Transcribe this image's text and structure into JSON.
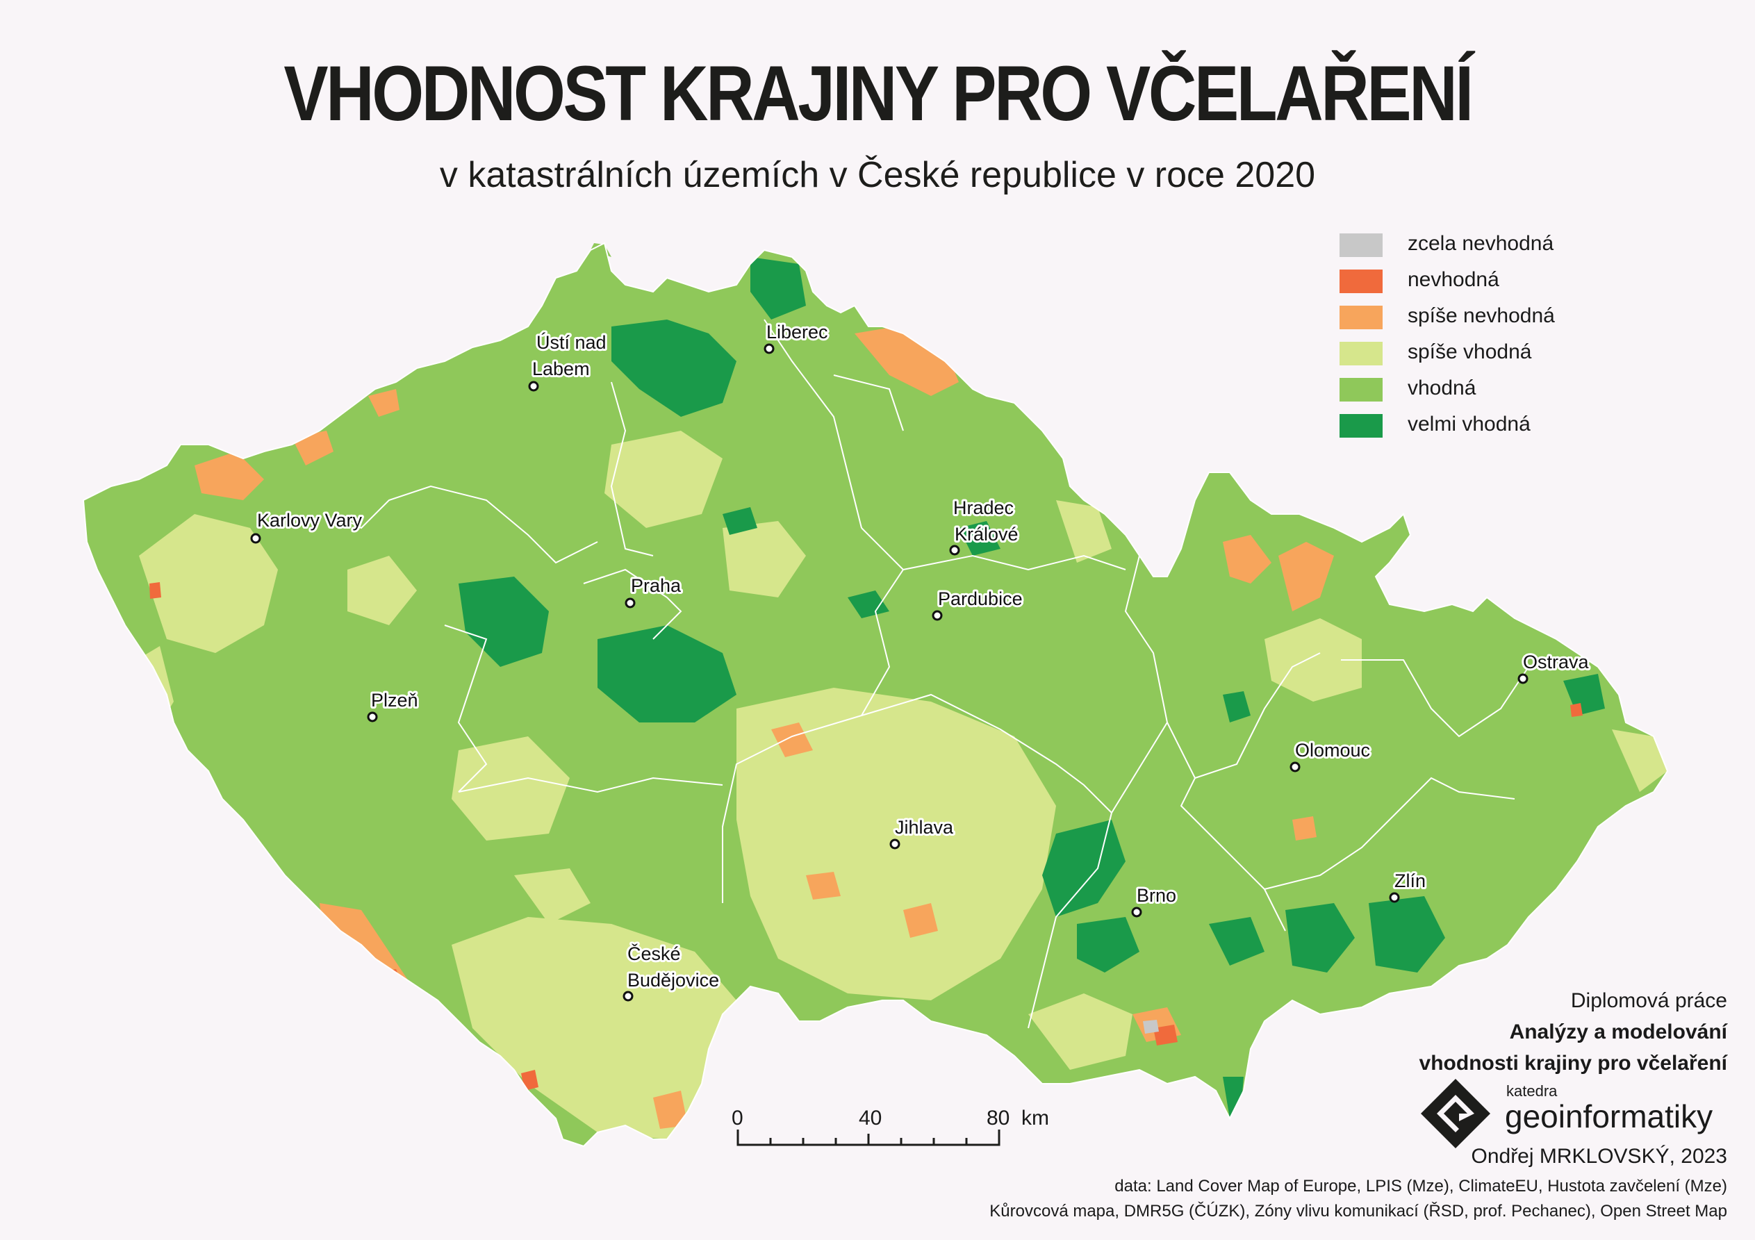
{
  "title": "VHODNOST KRAJINY PRO VČELAŘENÍ",
  "subtitle": "v katastrálních územích v České republice v roce 2020",
  "colors": {
    "background": "#f9f5f8",
    "zcela_nevhodna": "#c8c8c8",
    "nevhodna": "#f06a3c",
    "spise_nevhodna": "#f7a55c",
    "spise_vhodna": "#d6e68c",
    "vhodna": "#8fc85a",
    "velmi_vhodna": "#1a9a4a"
  },
  "legend": [
    {
      "label": "zcela nevhodná",
      "color": "#c8c8c8"
    },
    {
      "label": "nevhodná",
      "color": "#f06a3c"
    },
    {
      "label": "spíše nevhodná",
      "color": "#f7a55c"
    },
    {
      "label": "spíše vhodná",
      "color": "#d6e68c"
    },
    {
      "label": "vhodná",
      "color": "#8fc85a"
    },
    {
      "label": "velmi vhodná",
      "color": "#1a9a4a"
    }
  ],
  "cities": [
    {
      "name": "Karlovy Vary",
      "lines": [
        "Karlovy Vary"
      ]
    },
    {
      "name": "Ústí nad Labem",
      "lines": [
        "Ústí nad",
        "Labem"
      ]
    },
    {
      "name": "Liberec",
      "lines": [
        "Liberec"
      ]
    },
    {
      "name": "Praha",
      "lines": [
        "Praha"
      ]
    },
    {
      "name": "Plzeň",
      "lines": [
        "Plzeň"
      ]
    },
    {
      "name": "Hradec Králové",
      "lines": [
        "Hradec",
        "Králové"
      ]
    },
    {
      "name": "Pardubice",
      "lines": [
        "Pardubice"
      ]
    },
    {
      "name": "Jihlava",
      "lines": [
        "Jihlava"
      ]
    },
    {
      "name": "České Budějovice",
      "lines": [
        "České",
        "Budějovice"
      ]
    },
    {
      "name": "Brno",
      "lines": [
        "Brno"
      ]
    },
    {
      "name": "Olomouc",
      "lines": [
        "Olomouc"
      ]
    },
    {
      "name": "Zlín",
      "lines": [
        "Zlín"
      ]
    },
    {
      "name": "Ostrava",
      "lines": [
        "Ostrava"
      ]
    }
  ],
  "scale_bar": {
    "labels": [
      "0",
      "40",
      "80"
    ],
    "unit": "km"
  },
  "credits": {
    "line1": "Diplomová práce",
    "line2": "Analýzy a modelování",
    "line3": "vhodnosti krajiny pro včelaření"
  },
  "department": {
    "small": "katedra",
    "big": "geoinformatiky",
    "logo_icon": "geoinformatics-logo-icon"
  },
  "author": "Ondřej MRKLOVSKÝ, 2023",
  "sources": {
    "line1": "data: Land Cover Map of Europe, LPIS (Mze), ClimateEU, Hustota zavčelení (Mze)",
    "line2": "Kůrovcová mapa, DMR5G (ČÚZK), Zóny vlivu komunikací (ŘSD, prof. Pechanec), Open Street Map"
  }
}
